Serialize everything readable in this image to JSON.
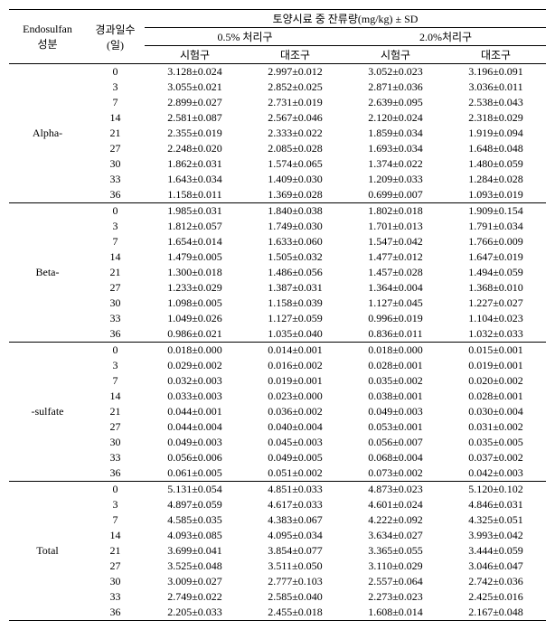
{
  "header": {
    "component": "Endosulfan\n성분",
    "days": "경과일수\n(일)",
    "residual": "토양시료 중 잔류량(mg/kg) ± SD",
    "group05": "0.5% 처리구",
    "group20": "2.0%처리구",
    "test": "시험구",
    "control": "대조구"
  },
  "groups": [
    {
      "name": "Alpha-",
      "rows": [
        {
          "d": "0",
          "a": "3.128±0.024",
          "b": "2.997±0.012",
          "c": "3.052±0.023",
          "e": "3.196±0.091"
        },
        {
          "d": "3",
          "a": "3.055±0.021",
          "b": "2.852±0.025",
          "c": "2.871±0.036",
          "e": "3.036±0.011"
        },
        {
          "d": "7",
          "a": "2.899±0.027",
          "b": "2.731±0.019",
          "c": "2.639±0.095",
          "e": "2.538±0.043"
        },
        {
          "d": "14",
          "a": "2.581±0.087",
          "b": "2.567±0.046",
          "c": "2.120±0.024",
          "e": "2.318±0.029"
        },
        {
          "d": "21",
          "a": "2.355±0.019",
          "b": "2.333±0.022",
          "c": "1.859±0.034",
          "e": "1.919±0.094"
        },
        {
          "d": "27",
          "a": "2.248±0.020",
          "b": "2.085±0.028",
          "c": "1.693±0.034",
          "e": "1.648±0.048"
        },
        {
          "d": "30",
          "a": "1.862±0.031",
          "b": "1.574±0.065",
          "c": "1.374±0.022",
          "e": "1.480±0.059"
        },
        {
          "d": "33",
          "a": "1.643±0.034",
          "b": "1.409±0.030",
          "c": "1.209±0.033",
          "e": "1.284±0.028"
        },
        {
          "d": "36",
          "a": "1.158±0.011",
          "b": "1.369±0.028",
          "c": "0.699±0.007",
          "e": "1.093±0.019"
        }
      ]
    },
    {
      "name": "Beta-",
      "rows": [
        {
          "d": "0",
          "a": "1.985±0.031",
          "b": "1.840±0.038",
          "c": "1.802±0.018",
          "e": "1.909±0.154"
        },
        {
          "d": "3",
          "a": "1.812±0.057",
          "b": "1.749±0.030",
          "c": "1.701±0.013",
          "e": "1.791±0.034"
        },
        {
          "d": "7",
          "a": "1.654±0.014",
          "b": "1.633±0.060",
          "c": "1.547±0.042",
          "e": "1.766±0.009"
        },
        {
          "d": "14",
          "a": "1.479±0.005",
          "b": "1.505±0.032",
          "c": "1.477±0.012",
          "e": "1.647±0.019"
        },
        {
          "d": "21",
          "a": "1.300±0.018",
          "b": "1.486±0.056",
          "c": "1.457±0.028",
          "e": "1.494±0.059"
        },
        {
          "d": "27",
          "a": "1.233±0.029",
          "b": "1.387±0.031",
          "c": "1.364±0.004",
          "e": "1.368±0.010"
        },
        {
          "d": "30",
          "a": "1.098±0.005",
          "b": "1.158±0.039",
          "c": "1.127±0.045",
          "e": "1.227±0.027"
        },
        {
          "d": "33",
          "a": "1.049±0.026",
          "b": "1.127±0.059",
          "c": "0.996±0.019",
          "e": "1.104±0.023"
        },
        {
          "d": "36",
          "a": "0.986±0.021",
          "b": "1.035±0.040",
          "c": "0.836±0.011",
          "e": "1.032±0.033"
        }
      ]
    },
    {
      "name": "-sulfate",
      "rows": [
        {
          "d": "0",
          "a": "0.018±0.000",
          "b": "0.014±0.001",
          "c": "0.018±0.000",
          "e": "0.015±0.001"
        },
        {
          "d": "3",
          "a": "0.029±0.002",
          "b": "0.016±0.002",
          "c": "0.028±0.001",
          "e": "0.019±0.001"
        },
        {
          "d": "7",
          "a": "0.032±0.003",
          "b": "0.019±0.001",
          "c": "0.035±0.002",
          "e": "0.020±0.002"
        },
        {
          "d": "14",
          "a": "0.033±0.003",
          "b": "0.023±0.000",
          "c": "0.038±0.001",
          "e": "0.028±0.001"
        },
        {
          "d": "21",
          "a": "0.044±0.001",
          "b": "0.036±0.002",
          "c": "0.049±0.003",
          "e": "0.030±0.004"
        },
        {
          "d": "27",
          "a": "0.044±0.004",
          "b": "0.040±0.004",
          "c": "0.053±0.001",
          "e": "0.031±0.002"
        },
        {
          "d": "30",
          "a": "0.049±0.003",
          "b": "0.045±0.003",
          "c": "0.056±0.007",
          "e": "0.035±0.005"
        },
        {
          "d": "33",
          "a": "0.056±0.006",
          "b": "0.049±0.005",
          "c": "0.068±0.004",
          "e": "0.037±0.002"
        },
        {
          "d": "36",
          "a": "0.061±0.005",
          "b": "0.051±0.002",
          "c": "0.073±0.002",
          "e": "0.042±0.003"
        }
      ]
    },
    {
      "name": "Total",
      "rows": [
        {
          "d": "0",
          "a": "5.131±0.054",
          "b": "4.851±0.033",
          "c": "4.873±0.023",
          "e": "5.120±0.102"
        },
        {
          "d": "3",
          "a": "4.897±0.059",
          "b": "4.617±0.033",
          "c": "4.601±0.024",
          "e": "4.846±0.031"
        },
        {
          "d": "7",
          "a": "4.585±0.035",
          "b": "4.383±0.067",
          "c": "4.222±0.092",
          "e": "4.325±0.051"
        },
        {
          "d": "14",
          "a": "4.093±0.085",
          "b": "4.095±0.034",
          "c": "3.634±0.027",
          "e": "3.993±0.042"
        },
        {
          "d": "21",
          "a": "3.699±0.041",
          "b": "3.854±0.077",
          "c": "3.365±0.055",
          "e": "3.444±0.059"
        },
        {
          "d": "27",
          "a": "3.525±0.048",
          "b": "3.511±0.050",
          "c": "3.110±0.029",
          "e": "3.046±0.047"
        },
        {
          "d": "30",
          "a": "3.009±0.027",
          "b": "2.777±0.103",
          "c": "2.557±0.064",
          "e": "2.742±0.036"
        },
        {
          "d": "33",
          "a": "2.749±0.022",
          "b": "2.585±0.040",
          "c": "2.273±0.023",
          "e": "2.425±0.016"
        },
        {
          "d": "36",
          "a": "2.205±0.033",
          "b": "2.455±0.018",
          "c": "1.608±0.014",
          "e": "2.167±0.048"
        }
      ]
    }
  ]
}
